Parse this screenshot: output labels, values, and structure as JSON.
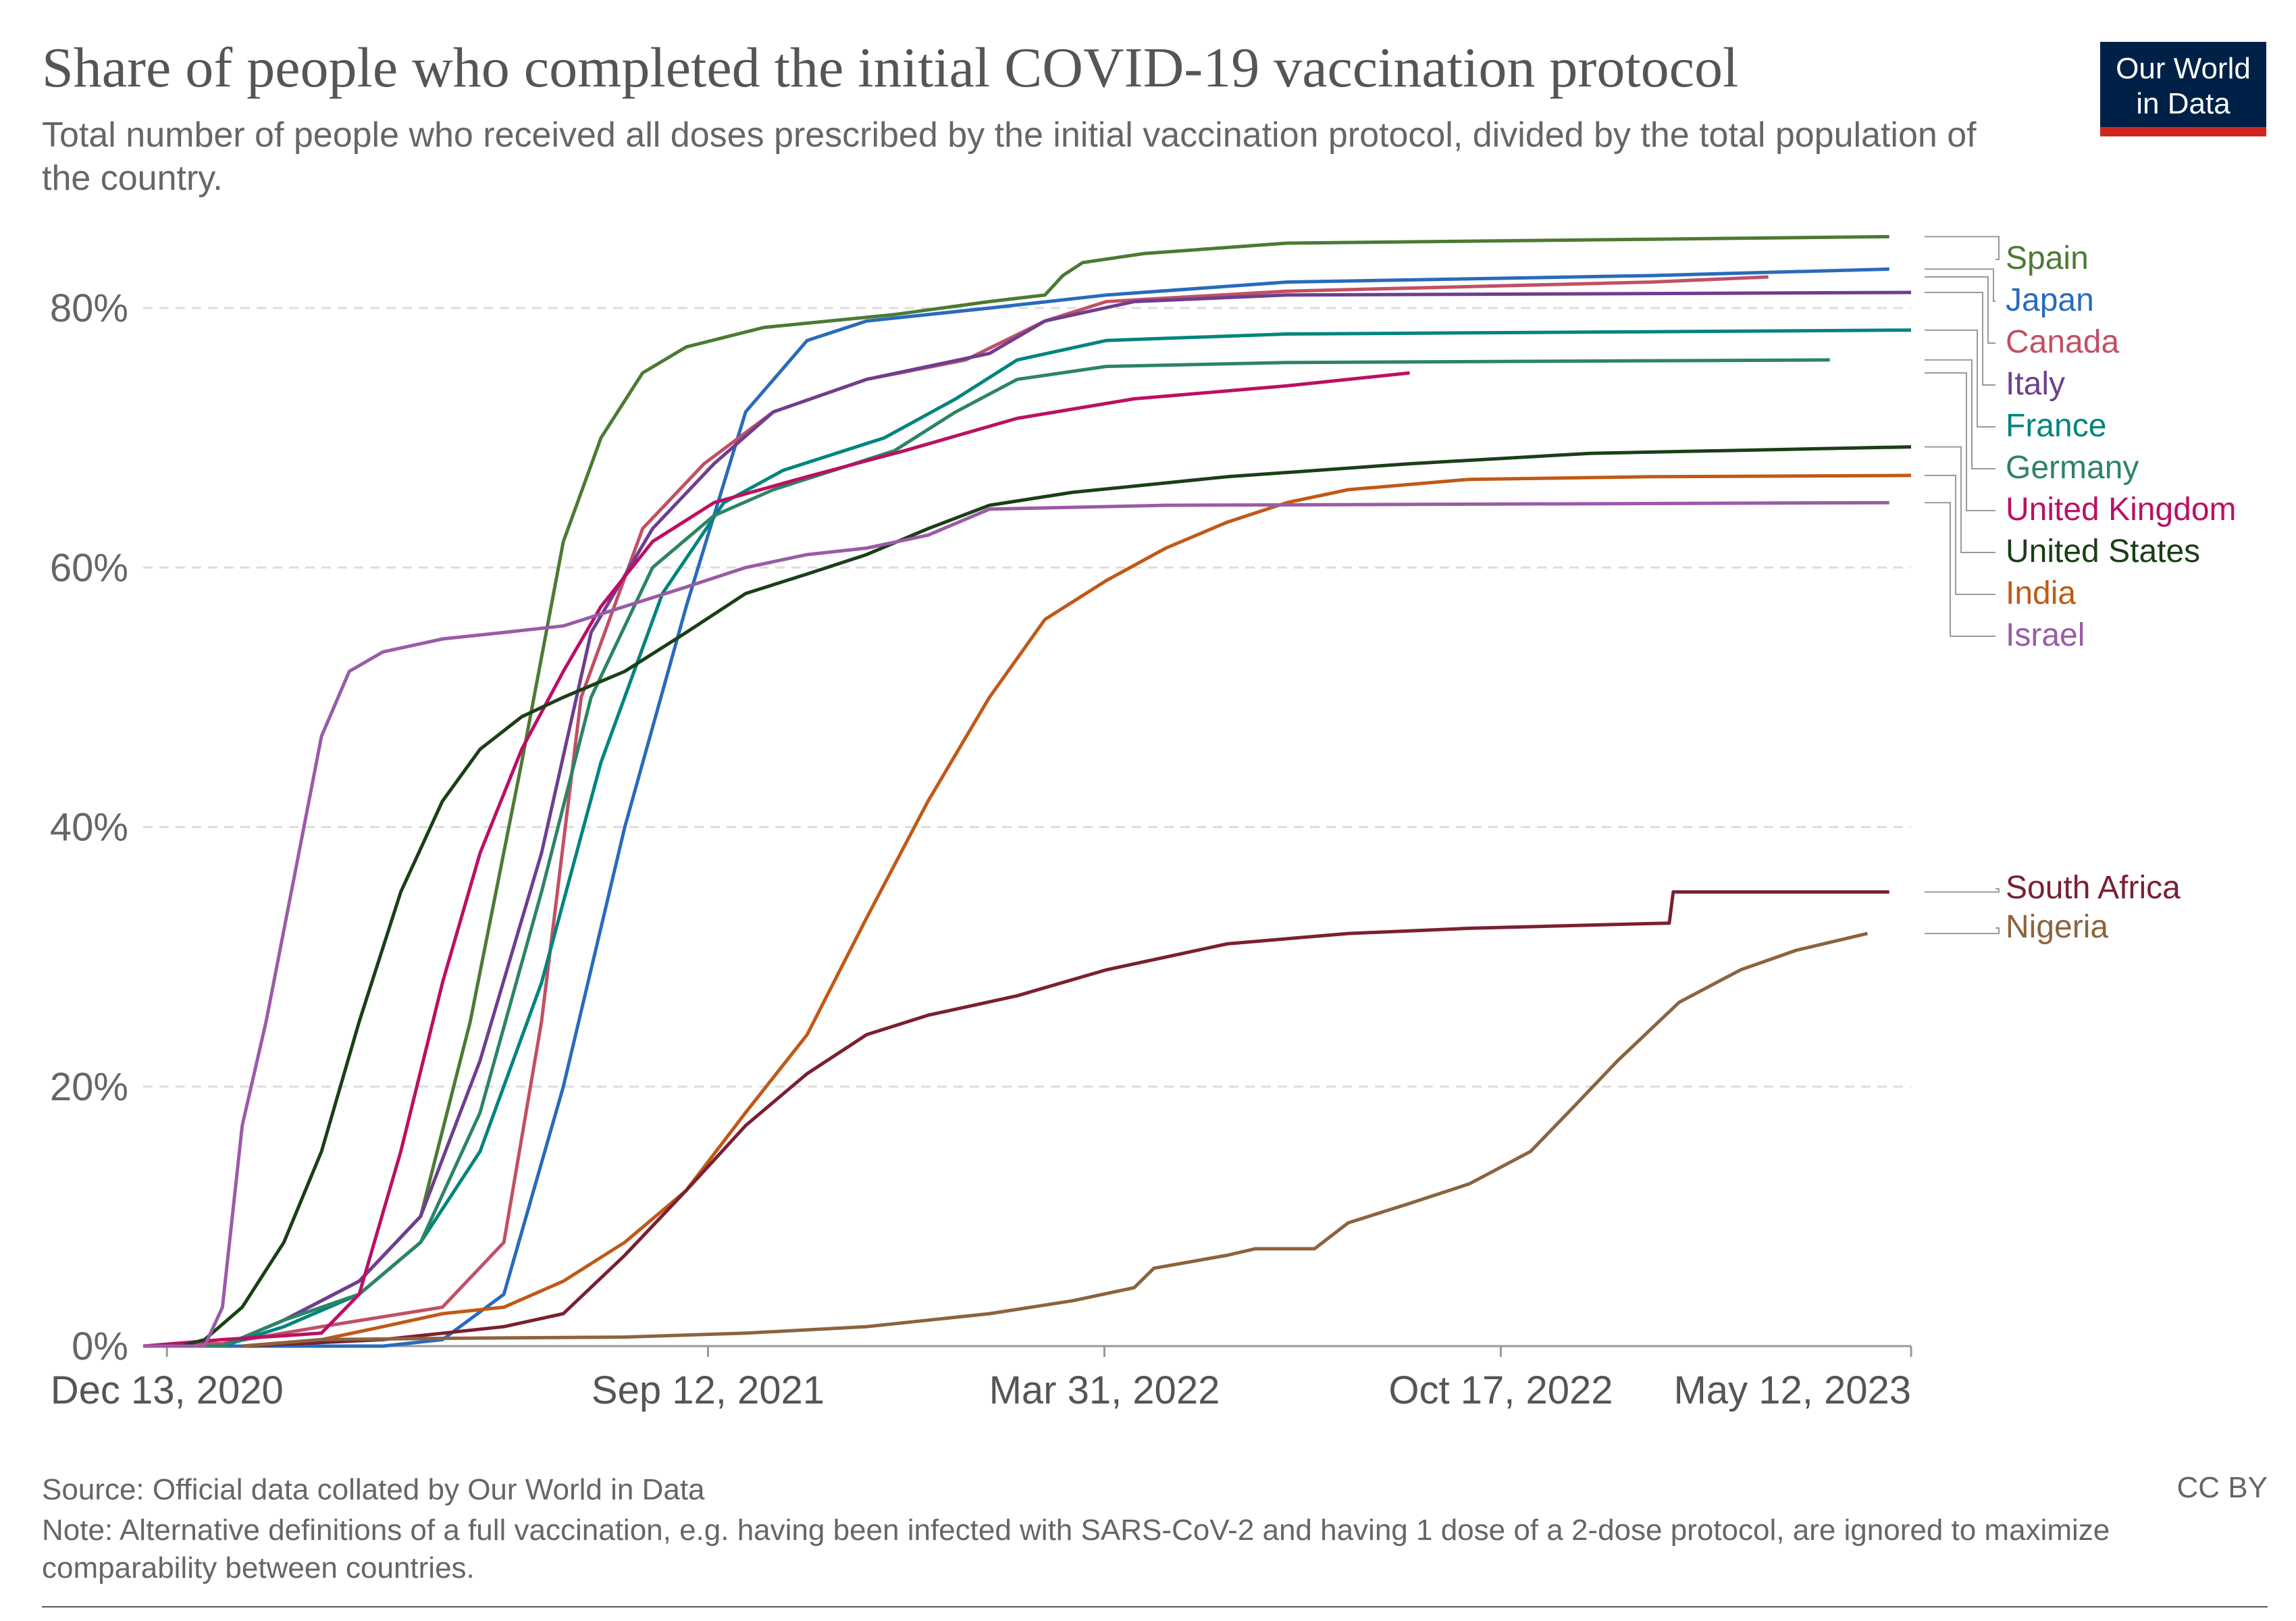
{
  "header": {
    "title": "Share of people who completed the initial COVID-19 vaccination protocol",
    "subtitle": "Total number of people who received all doses prescribed by the initial vaccination protocol, divided by the total population of the country.",
    "logo_line1": "Our World",
    "logo_line2": "in Data"
  },
  "footer": {
    "source": "Source: Official data collated by Our World in Data",
    "license": "CC BY",
    "note": "Note: Alternative definitions of a full vaccination, e.g. having been infected with SARS-CoV-2 and having 1 dose of a 2-dose protocol, are ignored to maximize comparability between countries."
  },
  "colors": {
    "grid": "#dddddd",
    "axis": "#999999",
    "legend_connector": "#999999"
  },
  "chart_data": {
    "type": "line",
    "x_axis": {
      "type": "date",
      "range": [
        "2020-12-01",
        "2023-05-12"
      ],
      "tick_values": [
        "2020-12-13",
        "2021-09-12",
        "2022-03-31",
        "2022-10-17",
        "2023-05-12"
      ],
      "tick_labels": [
        "Dec 13, 2020",
        "Sep 12, 2021",
        "Mar 31, 2022",
        "Oct 17, 2022",
        "May 12, 2023"
      ]
    },
    "y_axis": {
      "range": [
        0,
        85
      ],
      "tick_values": [
        0,
        20,
        40,
        60,
        80
      ],
      "tick_labels": [
        "0%",
        "20%",
        "40%",
        "60%",
        "80%"
      ],
      "grid": true
    },
    "legend": "right",
    "series": [
      {
        "name": "Spain",
        "color": "#4c7a34",
        "points": [
          [
            "2020-12-01",
            0
          ],
          [
            "2021-01-10",
            0
          ],
          [
            "2021-02-10",
            2
          ],
          [
            "2021-03-20",
            5
          ],
          [
            "2021-04-20",
            10
          ],
          [
            "2021-05-15",
            25
          ],
          [
            "2021-06-10",
            45
          ],
          [
            "2021-07-01",
            62
          ],
          [
            "2021-07-20",
            70
          ],
          [
            "2021-08-10",
            75
          ],
          [
            "2021-09-01",
            77
          ],
          [
            "2021-10-10",
            78.5
          ],
          [
            "2021-12-15",
            79.5
          ],
          [
            "2022-02-01",
            80.5
          ],
          [
            "2022-03-01",
            81
          ],
          [
            "2022-03-10",
            82.5
          ],
          [
            "2022-03-20",
            83.5
          ],
          [
            "2022-04-20",
            84.2
          ],
          [
            "2022-07-01",
            85
          ],
          [
            "2023-01-01",
            85.3
          ],
          [
            "2023-05-01",
            85.5
          ]
        ]
      },
      {
        "name": "Japan",
        "color": "#286bbb",
        "points": [
          [
            "2020-12-01",
            0
          ],
          [
            "2021-04-01",
            0
          ],
          [
            "2021-05-01",
            0.5
          ],
          [
            "2021-06-01",
            4
          ],
          [
            "2021-07-01",
            20
          ],
          [
            "2021-08-01",
            40
          ],
          [
            "2021-09-01",
            57
          ],
          [
            "2021-10-01",
            72
          ],
          [
            "2021-11-01",
            77.5
          ],
          [
            "2021-12-01",
            79
          ],
          [
            "2022-02-01",
            80
          ],
          [
            "2022-04-01",
            81
          ],
          [
            "2022-07-01",
            82
          ],
          [
            "2023-01-01",
            82.5
          ],
          [
            "2023-05-01",
            83
          ]
        ]
      },
      {
        "name": "Canada",
        "color": "#c15065",
        "points": [
          [
            "2020-12-01",
            0
          ],
          [
            "2021-01-10",
            0.2
          ],
          [
            "2021-03-01",
            1.5
          ],
          [
            "2021-05-01",
            3
          ],
          [
            "2021-06-01",
            8
          ],
          [
            "2021-06-20",
            25
          ],
          [
            "2021-07-10",
            50
          ],
          [
            "2021-08-10",
            63
          ],
          [
            "2021-09-10",
            68
          ],
          [
            "2021-10-15",
            72
          ],
          [
            "2021-12-01",
            74.5
          ],
          [
            "2022-01-20",
            76
          ],
          [
            "2022-03-01",
            79
          ],
          [
            "2022-04-01",
            80.5
          ],
          [
            "2022-07-01",
            81.3
          ],
          [
            "2023-01-01",
            82
          ],
          [
            "2023-03-01",
            82.4
          ]
        ]
      },
      {
        "name": "Italy",
        "color": "#6d3e91",
        "points": [
          [
            "2020-12-01",
            0
          ],
          [
            "2021-01-10",
            0
          ],
          [
            "2021-02-10",
            2
          ],
          [
            "2021-03-20",
            5
          ],
          [
            "2021-04-20",
            10
          ],
          [
            "2021-05-20",
            22
          ],
          [
            "2021-06-20",
            38
          ],
          [
            "2021-07-15",
            55
          ],
          [
            "2021-08-15",
            63
          ],
          [
            "2021-09-15",
            68
          ],
          [
            "2021-10-15",
            72
          ],
          [
            "2021-12-01",
            74.5
          ],
          [
            "2022-02-01",
            76.5
          ],
          [
            "2022-03-01",
            79
          ],
          [
            "2022-04-15",
            80.5
          ],
          [
            "2022-07-01",
            81
          ],
          [
            "2023-05-12",
            81.2
          ]
        ]
      },
      {
        "name": "France",
        "color": "#00847e",
        "points": [
          [
            "2020-12-01",
            0
          ],
          [
            "2021-01-10",
            0
          ],
          [
            "2021-02-10",
            1.5
          ],
          [
            "2021-03-20",
            4
          ],
          [
            "2021-04-20",
            8
          ],
          [
            "2021-05-20",
            15
          ],
          [
            "2021-06-20",
            28
          ],
          [
            "2021-07-20",
            45
          ],
          [
            "2021-08-20",
            58
          ],
          [
            "2021-09-20",
            65
          ],
          [
            "2021-10-20",
            67.5
          ],
          [
            "2021-12-10",
            70
          ],
          [
            "2022-01-15",
            73
          ],
          [
            "2022-02-15",
            76
          ],
          [
            "2022-04-01",
            77.5
          ],
          [
            "2022-07-01",
            78
          ],
          [
            "2023-05-12",
            78.3
          ]
        ]
      },
      {
        "name": "Germany",
        "color": "#2c8465",
        "points": [
          [
            "2020-12-01",
            0
          ],
          [
            "2021-01-10",
            0
          ],
          [
            "2021-02-10",
            2
          ],
          [
            "2021-03-20",
            4
          ],
          [
            "2021-04-20",
            8
          ],
          [
            "2021-05-20",
            18
          ],
          [
            "2021-06-20",
            35
          ],
          [
            "2021-07-15",
            50
          ],
          [
            "2021-08-15",
            60
          ],
          [
            "2021-09-15",
            64
          ],
          [
            "2021-10-15",
            66
          ],
          [
            "2021-12-15",
            69
          ],
          [
            "2022-01-15",
            72
          ],
          [
            "2022-02-15",
            74.5
          ],
          [
            "2022-04-01",
            75.5
          ],
          [
            "2022-07-01",
            75.8
          ],
          [
            "2023-04-01",
            76
          ]
        ]
      },
      {
        "name": "United Kingdom",
        "color": "#bc0f64",
        "points": [
          [
            "2020-12-01",
            0
          ],
          [
            "2021-01-10",
            0.5
          ],
          [
            "2021-02-10",
            0.8
          ],
          [
            "2021-03-01",
            1
          ],
          [
            "2021-03-20",
            4
          ],
          [
            "2021-04-10",
            15
          ],
          [
            "2021-05-01",
            28
          ],
          [
            "2021-05-20",
            38
          ],
          [
            "2021-06-10",
            46
          ],
          [
            "2021-07-01",
            52
          ],
          [
            "2021-07-20",
            57
          ],
          [
            "2021-08-15",
            62
          ],
          [
            "2021-09-15",
            65
          ],
          [
            "2021-11-01",
            67
          ],
          [
            "2021-12-20",
            69
          ],
          [
            "2022-02-15",
            71.5
          ],
          [
            "2022-04-15",
            73
          ],
          [
            "2022-07-01",
            74
          ],
          [
            "2022-09-01",
            75
          ]
        ]
      },
      {
        "name": "United States",
        "color": "#1a3f16",
        "points": [
          [
            "2020-12-01",
            0
          ],
          [
            "2020-12-20",
            0
          ],
          [
            "2021-01-01",
            0.5
          ],
          [
            "2021-01-20",
            3
          ],
          [
            "2021-02-10",
            8
          ],
          [
            "2021-03-01",
            15
          ],
          [
            "2021-03-20",
            25
          ],
          [
            "2021-04-10",
            35
          ],
          [
            "2021-05-01",
            42
          ],
          [
            "2021-05-20",
            46
          ],
          [
            "2021-06-10",
            48.5
          ],
          [
            "2021-07-01",
            50
          ],
          [
            "2021-08-01",
            52
          ],
          [
            "2021-09-01",
            55
          ],
          [
            "2021-10-01",
            58
          ],
          [
            "2021-11-01",
            59.5
          ],
          [
            "2021-12-01",
            61
          ],
          [
            "2022-01-01",
            63
          ],
          [
            "2022-02-01",
            64.8
          ],
          [
            "2022-03-15",
            65.8
          ],
          [
            "2022-06-01",
            67
          ],
          [
            "2022-09-01",
            68
          ],
          [
            "2022-12-01",
            68.8
          ],
          [
            "2023-05-12",
            69.3
          ]
        ]
      },
      {
        "name": "India",
        "color": "#c05917",
        "points": [
          [
            "2021-01-20",
            0
          ],
          [
            "2021-03-01",
            0.5
          ],
          [
            "2021-04-01",
            1.5
          ],
          [
            "2021-05-01",
            2.5
          ],
          [
            "2021-06-01",
            3
          ],
          [
            "2021-07-01",
            5
          ],
          [
            "2021-08-01",
            8
          ],
          [
            "2021-09-01",
            12
          ],
          [
            "2021-10-01",
            18
          ],
          [
            "2021-11-01",
            24
          ],
          [
            "2021-12-01",
            33
          ],
          [
            "2022-01-01",
            42
          ],
          [
            "2022-02-01",
            50
          ],
          [
            "2022-03-01",
            56
          ],
          [
            "2022-04-01",
            59
          ],
          [
            "2022-05-01",
            61.5
          ],
          [
            "2022-06-01",
            63.5
          ],
          [
            "2022-07-01",
            65
          ],
          [
            "2022-08-01",
            66
          ],
          [
            "2022-10-01",
            66.8
          ],
          [
            "2023-01-01",
            67
          ],
          [
            "2023-05-12",
            67.1
          ]
        ]
      },
      {
        "name": "Israel",
        "color": "#9a5ba6",
        "points": [
          [
            "2020-12-01",
            0
          ],
          [
            "2021-01-01",
            0
          ],
          [
            "2021-01-10",
            3
          ],
          [
            "2021-01-20",
            17
          ],
          [
            "2021-02-01",
            25
          ],
          [
            "2021-02-15",
            36
          ],
          [
            "2021-03-01",
            47
          ],
          [
            "2021-03-15",
            52
          ],
          [
            "2021-04-01",
            53.5
          ],
          [
            "2021-05-01",
            54.5
          ],
          [
            "2021-06-01",
            55
          ],
          [
            "2021-07-01",
            55.5
          ],
          [
            "2021-08-01",
            57
          ],
          [
            "2021-09-01",
            58.5
          ],
          [
            "2021-10-01",
            60
          ],
          [
            "2021-11-01",
            61
          ],
          [
            "2021-12-01",
            61.5
          ],
          [
            "2022-01-01",
            62.5
          ],
          [
            "2022-02-01",
            64.5
          ],
          [
            "2022-05-01",
            64.8
          ],
          [
            "2023-05-01",
            65
          ]
        ]
      },
      {
        "name": "South Africa",
        "color": "#7a2030",
        "points": [
          [
            "2021-01-20",
            0
          ],
          [
            "2021-04-01",
            0.5
          ],
          [
            "2021-06-01",
            1.5
          ],
          [
            "2021-07-01",
            2.5
          ],
          [
            "2021-08-01",
            7
          ],
          [
            "2021-09-01",
            12
          ],
          [
            "2021-10-01",
            17
          ],
          [
            "2021-11-01",
            21
          ],
          [
            "2021-12-01",
            24
          ],
          [
            "2022-01-01",
            25.5
          ],
          [
            "2022-02-15",
            27
          ],
          [
            "2022-04-01",
            29
          ],
          [
            "2022-06-01",
            31
          ],
          [
            "2022-08-01",
            31.8
          ],
          [
            "2022-10-01",
            32.2
          ],
          [
            "2022-12-15",
            32.5
          ],
          [
            "2023-01-10",
            32.6
          ],
          [
            "2023-01-12",
            35
          ],
          [
            "2023-05-01",
            35
          ]
        ]
      },
      {
        "name": "Nigeria",
        "color": "#8c633e",
        "points": [
          [
            "2021-01-20",
            0
          ],
          [
            "2021-03-01",
            0.5
          ],
          [
            "2021-05-01",
            0.6
          ],
          [
            "2021-08-01",
            0.7
          ],
          [
            "2021-10-01",
            1
          ],
          [
            "2021-12-01",
            1.5
          ],
          [
            "2022-02-01",
            2.5
          ],
          [
            "2022-03-15",
            3.5
          ],
          [
            "2022-04-15",
            4.5
          ],
          [
            "2022-04-25",
            6
          ],
          [
            "2022-06-01",
            7
          ],
          [
            "2022-06-15",
            7.5
          ],
          [
            "2022-07-15",
            7.5
          ],
          [
            "2022-08-01",
            9.5
          ],
          [
            "2022-09-01",
            11
          ],
          [
            "2022-10-01",
            12.5
          ],
          [
            "2022-11-01",
            15
          ],
          [
            "2022-11-20",
            18
          ],
          [
            "2022-12-15",
            22
          ],
          [
            "2023-01-15",
            26.5
          ],
          [
            "2023-02-15",
            29
          ],
          [
            "2023-03-15",
            30.5
          ],
          [
            "2023-04-20",
            31.8
          ]
        ]
      }
    ]
  }
}
